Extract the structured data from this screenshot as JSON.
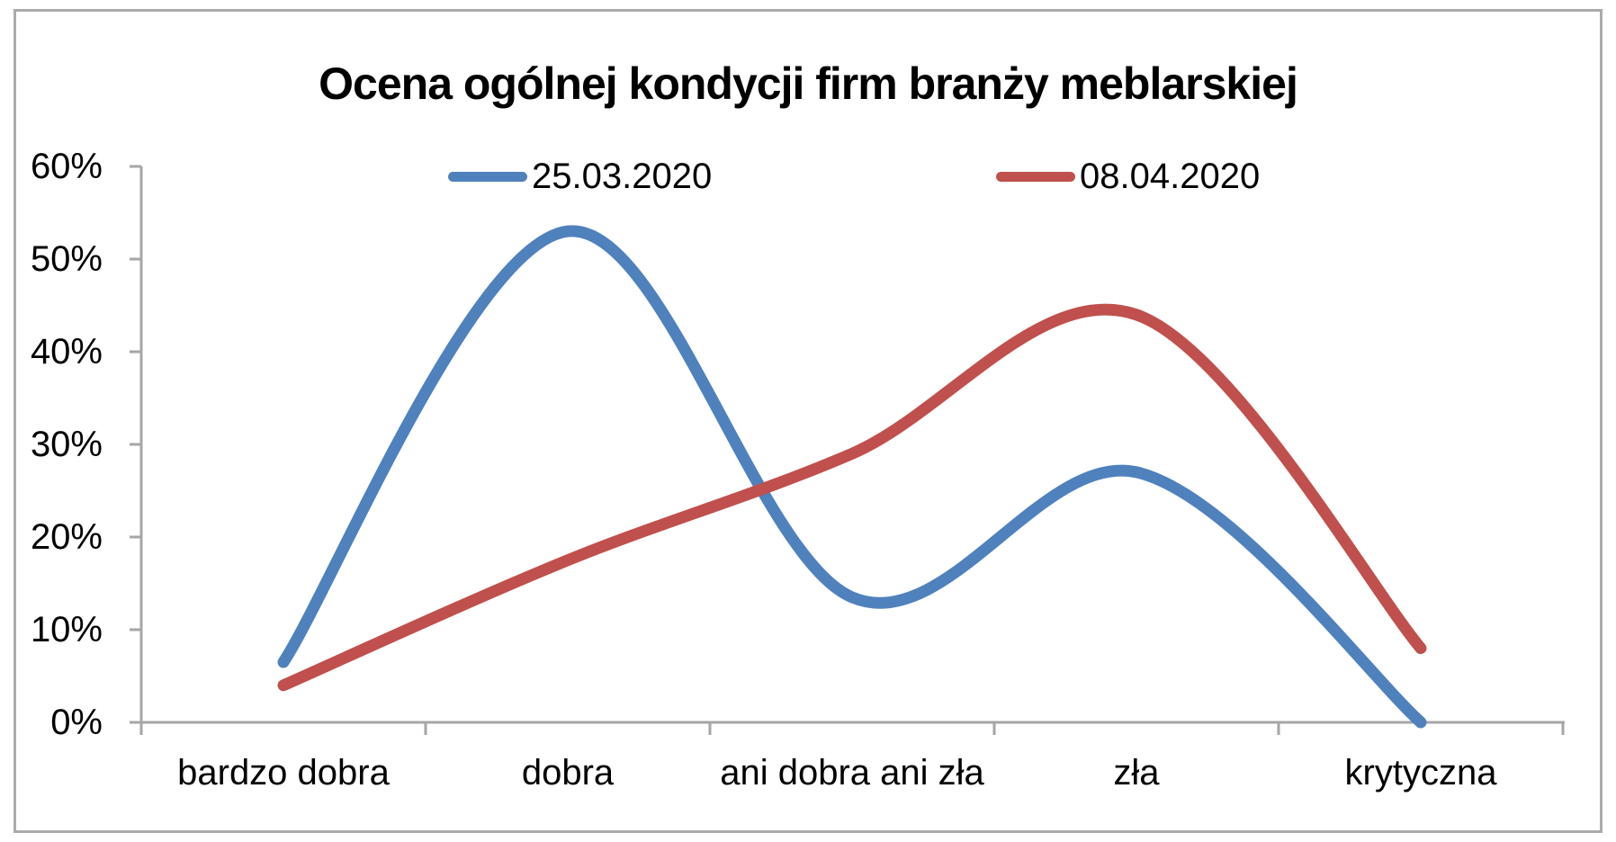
{
  "frame": {
    "border_color": "#ABABAB"
  },
  "chart_data": {
    "type": "line",
    "title": "Ocena ogólnej kondycji firm branży meblarskiej",
    "categories": [
      "bardzo dobra",
      "dobra",
      "ani dobra ani zła",
      "zła",
      "krytyczna"
    ],
    "series": [
      {
        "name": "25.03.2020",
        "color": "#4F81BD",
        "values": [
          6.5,
          53,
          13.5,
          27,
          0
        ]
      },
      {
        "name": "08.04.2020",
        "color": "#C0504D",
        "values": [
          4,
          17.5,
          29,
          44,
          8
        ]
      }
    ],
    "xlabel": "",
    "ylabel": "",
    "ylim": [
      0,
      60
    ],
    "y_tick_step": 10,
    "y_tick_labels": [
      "0%",
      "10%",
      "20%",
      "30%",
      "40%",
      "50%",
      "60%"
    ],
    "axis_color": "#A6A6A6",
    "text_color": "#000000",
    "grid": "off",
    "legend_position": "top",
    "smooth": true
  }
}
